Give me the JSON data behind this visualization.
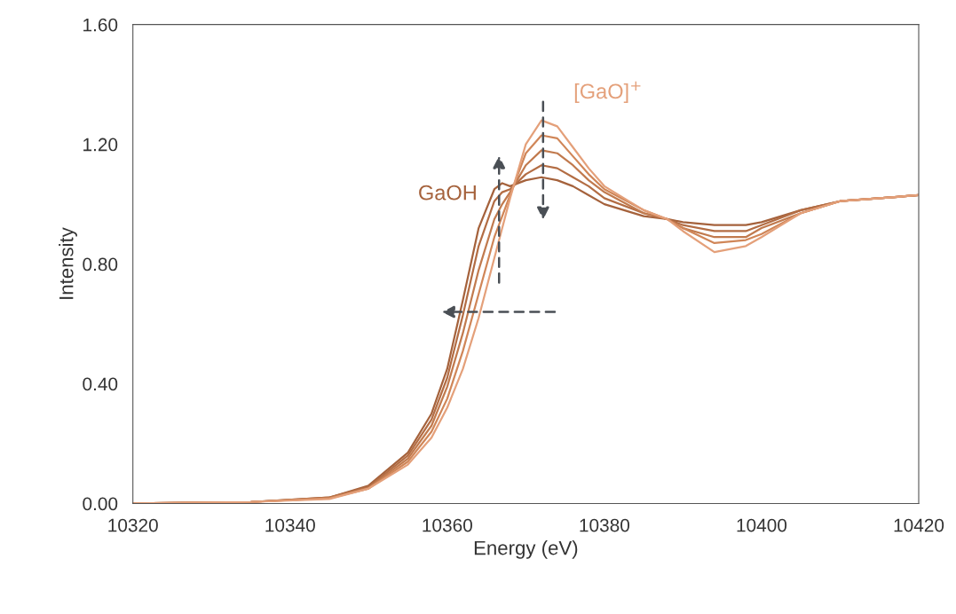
{
  "chart_data": {
    "type": "line",
    "xlabel": "Energy (eV)",
    "ylabel": "Intensity",
    "x": [
      10320,
      10335,
      10345,
      10350,
      10355,
      10358,
      10360,
      10362,
      10364,
      10366,
      10367,
      10368,
      10370,
      10372,
      10374,
      10376,
      10378,
      10380,
      10385,
      10388,
      10390,
      10394,
      10398,
      10400,
      10405,
      10410,
      10415,
      10420
    ],
    "series": [
      {
        "name": "GaOH",
        "color": "#a5623c",
        "values": [
          0,
          0.005,
          0.02,
          0.06,
          0.17,
          0.3,
          0.45,
          0.68,
          0.92,
          1.05,
          1.07,
          1.06,
          1.08,
          1.09,
          1.08,
          1.06,
          1.03,
          1.0,
          0.96,
          0.95,
          0.94,
          0.93,
          0.93,
          0.94,
          0.98,
          1.01,
          1.02,
          1.03
        ]
      },
      {
        "color": "#b36d44",
        "values": [
          0,
          0.005,
          0.02,
          0.055,
          0.16,
          0.28,
          0.42,
          0.63,
          0.86,
          1.01,
          1.04,
          1.05,
          1.1,
          1.13,
          1.12,
          1.09,
          1.06,
          1.02,
          0.97,
          0.95,
          0.93,
          0.91,
          0.91,
          0.93,
          0.98,
          1.01,
          1.02,
          1.03
        ]
      },
      {
        "color": "#c17a4e",
        "values": [
          0,
          0.005,
          0.018,
          0.052,
          0.15,
          0.26,
          0.39,
          0.57,
          0.78,
          0.95,
          1.0,
          1.04,
          1.13,
          1.18,
          1.17,
          1.13,
          1.08,
          1.04,
          0.97,
          0.95,
          0.92,
          0.89,
          0.89,
          0.92,
          0.97,
          1.01,
          1.02,
          1.03
        ]
      },
      {
        "color": "#d08658",
        "values": [
          0,
          0.005,
          0.017,
          0.05,
          0.14,
          0.24,
          0.35,
          0.51,
          0.7,
          0.89,
          0.96,
          1.03,
          1.17,
          1.23,
          1.22,
          1.16,
          1.1,
          1.05,
          0.98,
          0.95,
          0.92,
          0.87,
          0.88,
          0.9,
          0.97,
          1.01,
          1.02,
          1.03
        ]
      },
      {
        "name": "[GaO]$^{+}$",
        "color": "#e4a07a",
        "values": [
          0,
          0.005,
          0.015,
          0.05,
          0.13,
          0.22,
          0.32,
          0.45,
          0.62,
          0.82,
          0.92,
          1.02,
          1.2,
          1.28,
          1.26,
          1.19,
          1.12,
          1.06,
          0.98,
          0.95,
          0.91,
          0.84,
          0.86,
          0.89,
          0.97,
          1.01,
          1.02,
          1.03
        ]
      }
    ],
    "xlim": [
      10320,
      10420
    ],
    "xticks": [
      10320,
      10340,
      10360,
      10380,
      10400,
      10420
    ],
    "ylim": [
      0,
      1.6
    ],
    "yticks": [
      {
        "value": 0,
        "label": "0.00"
      },
      {
        "value": 0.4,
        "label": "0.40"
      },
      {
        "value": 0.8,
        "label": "0.80"
      },
      {
        "value": 1.2,
        "label": "1.20"
      },
      {
        "value": 1.6,
        "label": "1.60"
      }
    ],
    "grid": false,
    "legend": false,
    "marker": "none",
    "line_style": "solid"
  }
}
